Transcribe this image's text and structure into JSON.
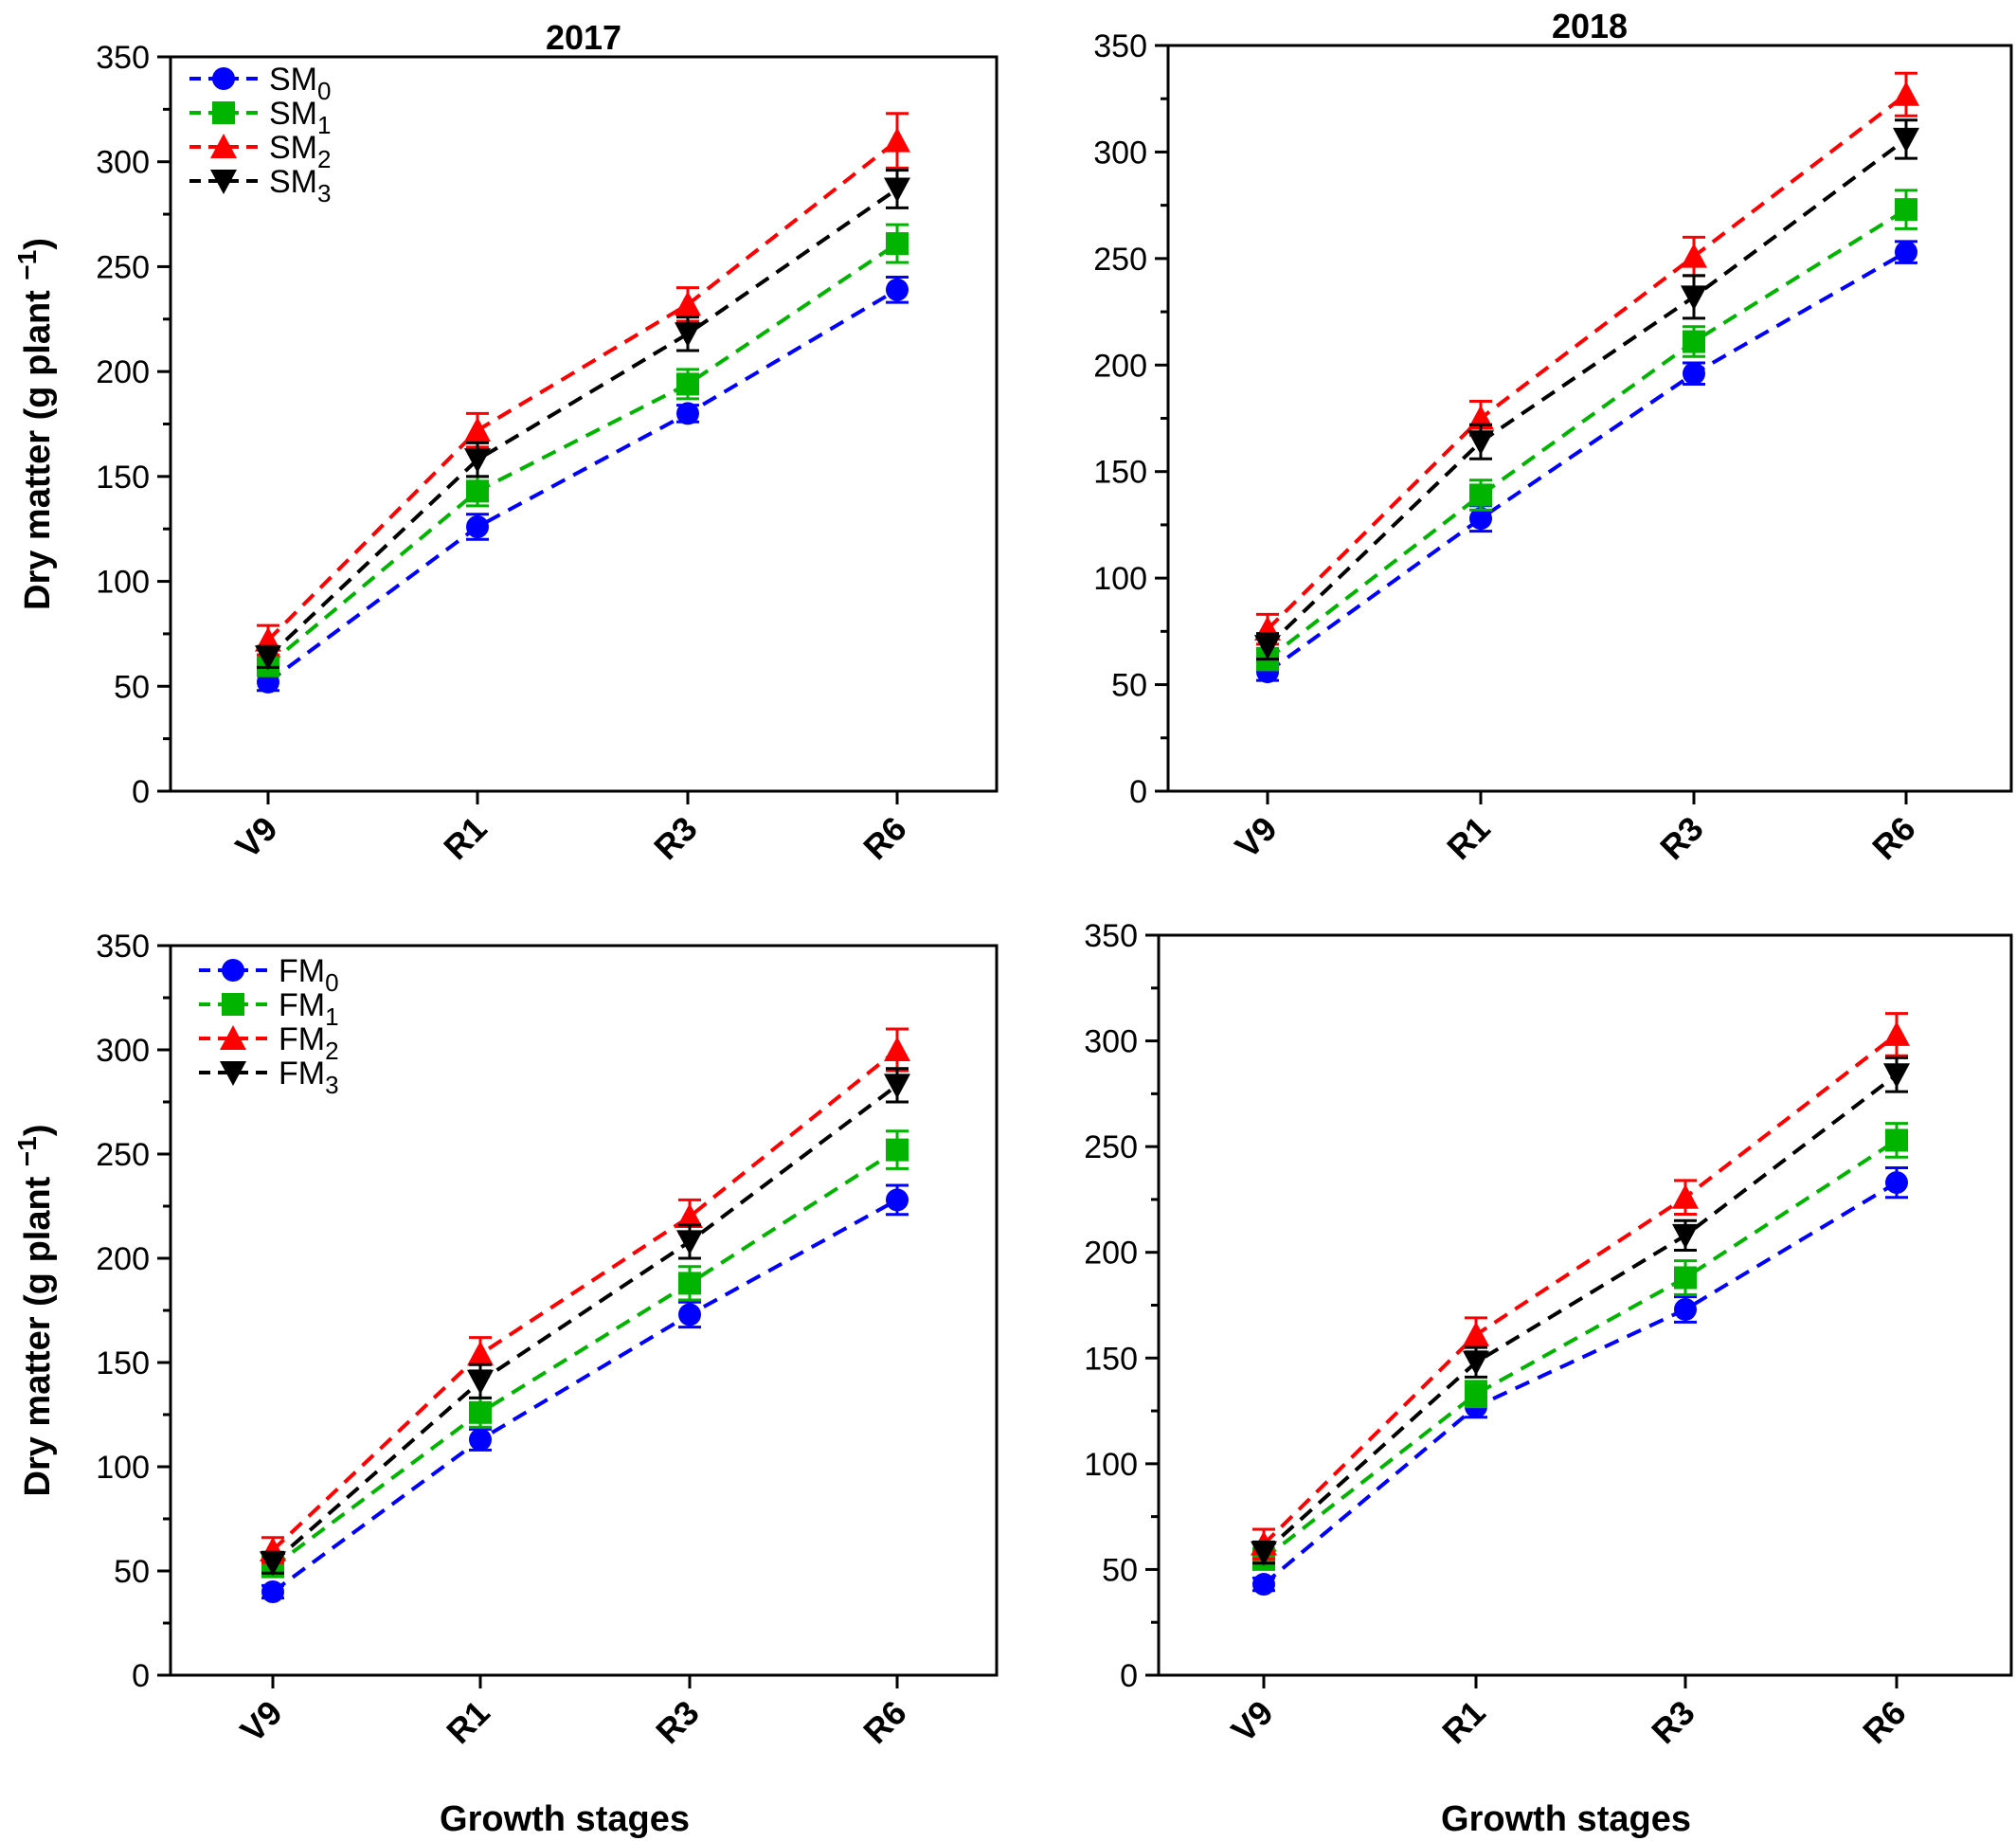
{
  "chart_data": [
    {
      "type": "line",
      "title": "2017",
      "ylabel": "Dry matter (g plant",
      "ylabel_sup": "−1",
      "ylabel_end": ")",
      "xlabel": "",
      "categories": [
        "V9",
        "R1",
        "R3",
        "R6"
      ],
      "ylim": [
        0,
        350
      ],
      "yticks": [
        "0",
        "50",
        "100",
        "150",
        "200",
        "250",
        "300",
        "350"
      ],
      "legend": "top-left",
      "series": [
        {
          "name": "SM",
          "sub": "0",
          "color": "#0000ff",
          "marker": "circle",
          "values": [
            52,
            126,
            180,
            239
          ],
          "errors": [
            4,
            6,
            4,
            6
          ]
        },
        {
          "name": "SM",
          "sub": "1",
          "color": "#00b400",
          "marker": "square",
          "values": [
            60,
            143,
            194,
            261
          ],
          "errors": [
            5,
            7,
            7,
            9
          ]
        },
        {
          "name": "SM",
          "sub": "2",
          "color": "#ff0000",
          "marker": "triangle-up",
          "values": [
            72,
            172,
            232,
            310
          ],
          "errors": [
            7,
            8,
            8,
            13
          ]
        },
        {
          "name": "SM",
          "sub": "3",
          "color": "#000000",
          "marker": "triangle-down",
          "values": [
            64,
            158,
            218,
            287
          ],
          "errors": [
            5,
            8,
            8,
            9
          ]
        }
      ]
    },
    {
      "type": "line",
      "title": "2018",
      "ylabel": "",
      "xlabel": "",
      "categories": [
        "V9",
        "R1",
        "R3",
        "R6"
      ],
      "ylim": [
        0,
        350
      ],
      "yticks": [
        "0",
        "50",
        "100",
        "150",
        "200",
        "250",
        "300",
        "350"
      ],
      "series": [
        {
          "name": "",
          "color": "#0000ff",
          "marker": "circle",
          "values": [
            56,
            128,
            196,
            253
          ],
          "errors": [
            4,
            6,
            5,
            5
          ]
        },
        {
          "name": "",
          "color": "#00b400",
          "marker": "square",
          "values": [
            62,
            139,
            211,
            273
          ],
          "errors": [
            5,
            7,
            7,
            9
          ]
        },
        {
          "name": "",
          "color": "#ff0000",
          "marker": "triangle-up",
          "values": [
            76,
            175,
            251,
            327
          ],
          "errors": [
            7,
            8,
            9,
            10
          ]
        },
        {
          "name": "",
          "color": "#000000",
          "marker": "triangle-down",
          "values": [
            68,
            164,
            232,
            306
          ],
          "errors": [
            6,
            8,
            10,
            9
          ]
        }
      ]
    },
    {
      "type": "line",
      "title": "",
      "ylabel": "Dry matter (g plant",
      "ylabel_sup": "−1",
      "ylabel_end": ")",
      "xlabel": "Growth stages",
      "categories": [
        "V9",
        "R1",
        "R3",
        "R6"
      ],
      "ylim": [
        0,
        350
      ],
      "yticks": [
        "0",
        "50",
        "100",
        "150",
        "200",
        "250",
        "300",
        "350"
      ],
      "legend": "top-left",
      "series": [
        {
          "name": "FM",
          "sub": "0",
          "color": "#0000ff",
          "marker": "circle",
          "values": [
            40,
            113,
            173,
            228
          ],
          "errors": [
            3,
            5,
            6,
            7
          ]
        },
        {
          "name": "FM",
          "sub": "1",
          "color": "#00b400",
          "marker": "square",
          "values": [
            52,
            126,
            188,
            252
          ],
          "errors": [
            4,
            7,
            8,
            9
          ]
        },
        {
          "name": "FM",
          "sub": "2",
          "color": "#ff0000",
          "marker": "triangle-up",
          "values": [
            60,
            154,
            220,
            300
          ],
          "errors": [
            6,
            8,
            8,
            10
          ]
        },
        {
          "name": "FM",
          "sub": "3",
          "color": "#000000",
          "marker": "triangle-down",
          "values": [
            54,
            141,
            208,
            283
          ],
          "errors": [
            5,
            8,
            8,
            8
          ]
        }
      ]
    },
    {
      "type": "line",
      "title": "",
      "ylabel": "",
      "xlabel": "Growth stages",
      "categories": [
        "V9",
        "R1",
        "R3",
        "R6"
      ],
      "ylim": [
        0,
        350
      ],
      "yticks": [
        "0",
        "50",
        "100",
        "150",
        "200",
        "250",
        "300",
        "350"
      ],
      "series": [
        {
          "name": "",
          "color": "#0000ff",
          "marker": "circle",
          "values": [
            43,
            127,
            173,
            233
          ],
          "errors": [
            3,
            5,
            6,
            7
          ]
        },
        {
          "name": "",
          "color": "#00b400",
          "marker": "square",
          "values": [
            55,
            133,
            188,
            253
          ],
          "errors": [
            5,
            6,
            8,
            8
          ]
        },
        {
          "name": "",
          "color": "#ff0000",
          "marker": "triangle-up",
          "values": [
            62,
            161,
            226,
            303
          ],
          "errors": [
            7,
            8,
            8,
            10
          ]
        },
        {
          "name": "",
          "color": "#000000",
          "marker": "triangle-down",
          "values": [
            58,
            148,
            208,
            284
          ],
          "errors": [
            5,
            7,
            7,
            8
          ]
        }
      ]
    }
  ]
}
